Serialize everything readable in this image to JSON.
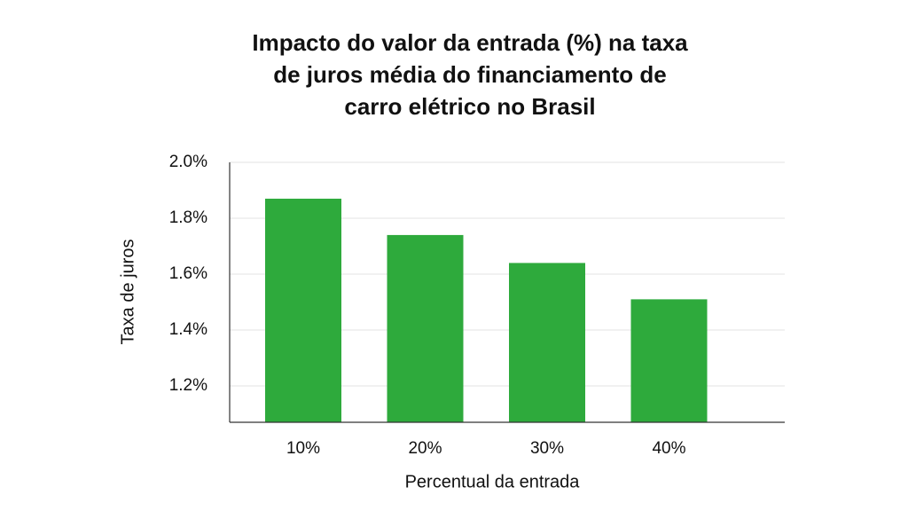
{
  "chart_data": {
    "type": "bar",
    "title": [
      "Impacto do valor da entrada (%) na taxa",
      "de juros média do financiamento de",
      "carro elétrico no Brasil"
    ],
    "x_label": "Percentual da entrada",
    "y_label": "Taxa de juros",
    "categories": [
      "10%",
      "20%",
      "30%",
      "40%"
    ],
    "values": [
      1.87,
      1.74,
      1.64,
      1.51
    ],
    "color": "#2eaa3c",
    "ylim": [
      1.07,
      2.0
    ],
    "yticks": [
      {
        "value": 1.2,
        "label": "1.2%"
      },
      {
        "value": 1.4,
        "label": "1.4%"
      },
      {
        "value": 1.6,
        "label": "1.6%"
      },
      {
        "value": 1.8,
        "label": "1.8%"
      },
      {
        "value": 2.0,
        "label": "2.0%"
      }
    ],
    "grid": true
  }
}
